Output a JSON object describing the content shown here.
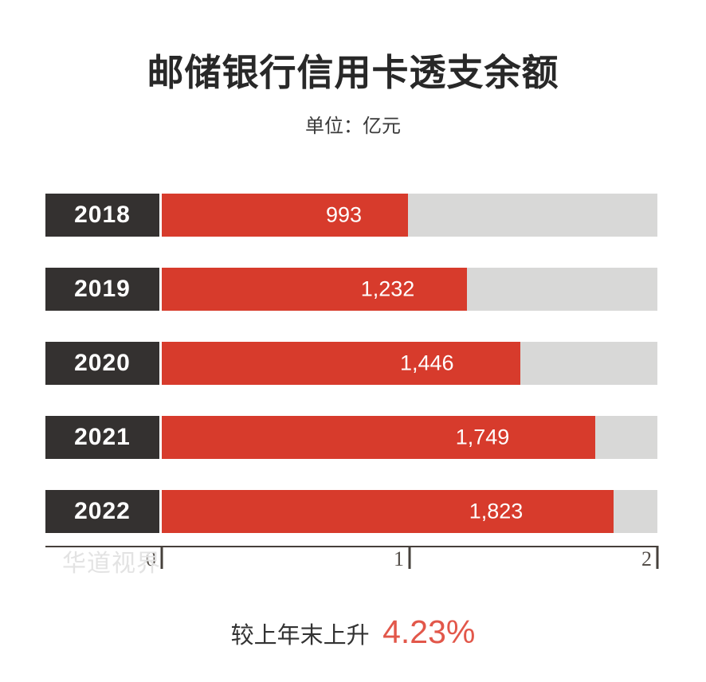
{
  "title": "邮储银行信用卡透支余额",
  "subtitle": "单位：亿元",
  "watermark": "华道视界",
  "footnote": {
    "prefix": "较上年末上升",
    "value": "4.23%"
  },
  "colors": {
    "bar_red": "#d73b2c",
    "track_gray": "#d8d8d7",
    "year_box_dark": "#343130",
    "accent_red": "#e2574a",
    "title_text": "#282828",
    "axis": "#46403b",
    "watermark_gray": "#e3e3e3"
  },
  "chart_data": {
    "type": "bar",
    "orientation": "horizontal",
    "title": "邮储银行信用卡透支余额",
    "unit_label": "单位：亿元",
    "categories": [
      "2018",
      "2019",
      "2020",
      "2021",
      "2022"
    ],
    "values": [
      993,
      1232,
      1446,
      1749,
      1823
    ],
    "value_labels": [
      "993",
      "1,232",
      "1,446",
      "1,749",
      "1,823"
    ],
    "xlim": [
      0,
      2000
    ],
    "x_ticks": [
      {
        "label": "0",
        "value": 0
      },
      {
        "label": "1",
        "value": 1000
      },
      {
        "label": "2",
        "value": 2000
      }
    ],
    "grid": false,
    "legend": false,
    "annotation": "较上年末上升 4.23%"
  }
}
